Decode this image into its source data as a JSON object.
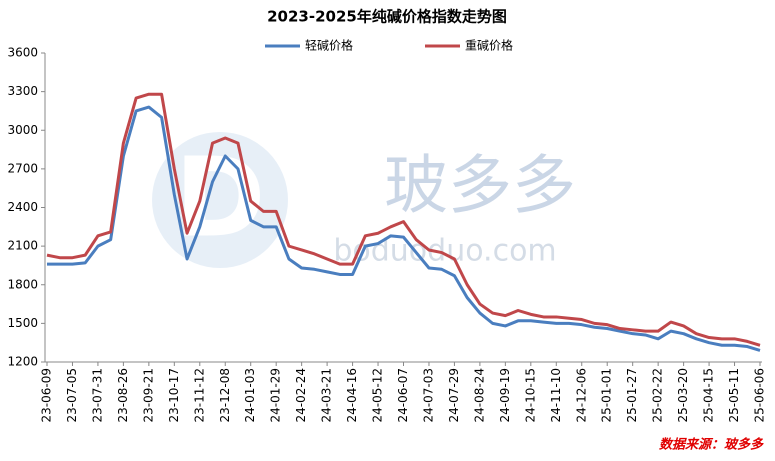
{
  "chart_data": {
    "type": "line",
    "title": "2023-2025年纯碱价格指数走势图",
    "watermark": "玻多多",
    "watermark_url": "boduoduo.com",
    "source": "数据来源：玻多多",
    "x": [
      "23-06-09",
      "23-06-22",
      "23-07-05",
      "23-07-18",
      "23-07-31",
      "23-08-13",
      "23-08-26",
      "23-09-08",
      "23-09-21",
      "23-10-04",
      "23-10-17",
      "23-10-30",
      "23-11-12",
      "23-11-25",
      "23-12-08",
      "23-12-21",
      "24-01-03",
      "24-01-16",
      "24-01-29",
      "24-02-11",
      "24-02-24",
      "24-03-08",
      "24-03-21",
      "24-04-03",
      "24-04-16",
      "24-04-29",
      "24-05-12",
      "24-05-25",
      "24-06-07",
      "24-06-20",
      "24-07-03",
      "24-07-16",
      "24-07-29",
      "24-08-11",
      "24-08-24",
      "24-09-06",
      "24-09-19",
      "24-10-02",
      "24-10-15",
      "24-10-28",
      "24-11-10",
      "24-11-23",
      "24-12-06",
      "24-12-19",
      "25-01-01",
      "25-01-14",
      "25-01-27",
      "25-02-09",
      "25-02-22",
      "25-03-07",
      "25-03-20",
      "25-04-02",
      "25-04-15",
      "25-04-28",
      "25-05-11",
      "25-05-24",
      "25-06-06"
    ],
    "series": [
      {
        "name": "轻碱价格",
        "color": "#4a7ebf",
        "values": [
          1960,
          1960,
          1960,
          1970,
          2100,
          2150,
          2800,
          3150,
          3180,
          3100,
          2500,
          2000,
          2250,
          2600,
          2800,
          2700,
          2300,
          2250,
          2250,
          2000,
          1930,
          1920,
          1900,
          1880,
          1880,
          2100,
          2120,
          2180,
          2170,
          2050,
          1930,
          1920,
          1870,
          1700,
          1580,
          1500,
          1480,
          1520,
          1520,
          1510,
          1500,
          1500,
          1490,
          1470,
          1460,
          1440,
          1420,
          1410,
          1380,
          1440,
          1420,
          1380,
          1350,
          1330,
          1330,
          1320,
          1290
        ]
      },
      {
        "name": "重碱价格",
        "color": "#c0474a",
        "values": [
          2030,
          2010,
          2010,
          2030,
          2180,
          2210,
          2900,
          3250,
          3280,
          3280,
          2700,
          2200,
          2450,
          2900,
          2940,
          2900,
          2450,
          2370,
          2370,
          2100,
          2070,
          2040,
          2000,
          1960,
          1960,
          2180,
          2200,
          2250,
          2290,
          2150,
          2070,
          2050,
          2000,
          1800,
          1650,
          1580,
          1560,
          1600,
          1570,
          1550,
          1550,
          1540,
          1530,
          1500,
          1490,
          1460,
          1450,
          1440,
          1440,
          1510,
          1480,
          1420,
          1390,
          1380,
          1380,
          1360,
          1330
        ]
      }
    ],
    "xlim": [
      "23-06-09",
      "25-06-06"
    ],
    "xticks": [
      "23-06-09",
      "23-07-05",
      "23-07-31",
      "23-08-26",
      "23-09-21",
      "23-10-17",
      "23-11-12",
      "23-12-08",
      "24-01-03",
      "24-01-29",
      "24-02-24",
      "24-03-21",
      "24-04-16",
      "24-05-12",
      "24-06-07",
      "24-07-03",
      "24-07-29",
      "24-08-24",
      "24-09-19",
      "24-10-15",
      "24-11-10",
      "24-12-06",
      "25-01-01",
      "25-01-27",
      "25-02-22",
      "25-03-20",
      "25-04-15",
      "25-05-11",
      "25-06-06"
    ],
    "ylim": [
      1200,
      3600
    ],
    "yticks": [
      1200,
      1500,
      1800,
      2100,
      2400,
      2700,
      3000,
      3300,
      3600
    ],
    "grid": false,
    "legend": "top"
  }
}
